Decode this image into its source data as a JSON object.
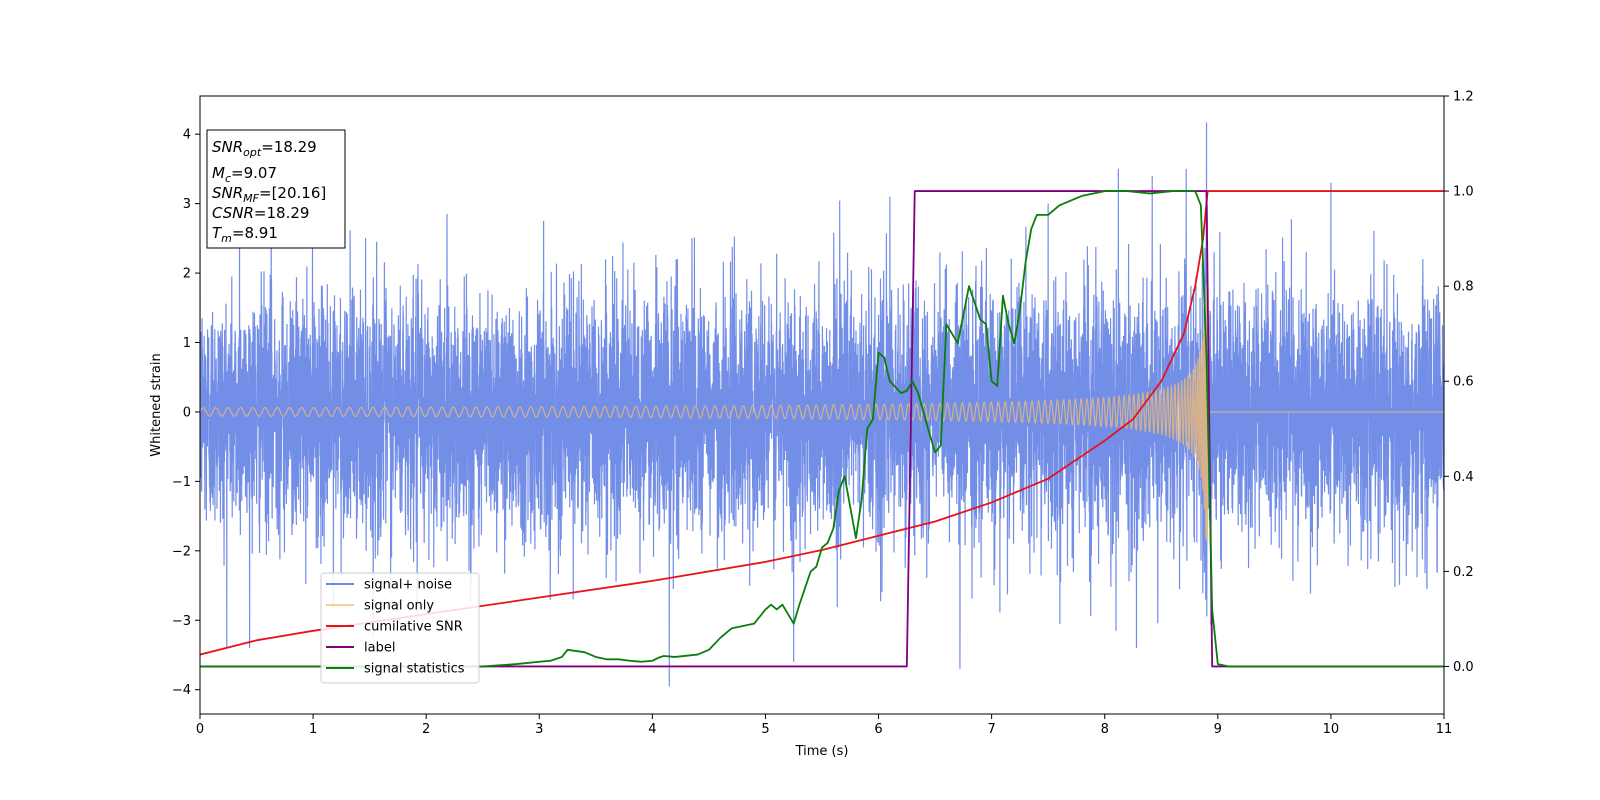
{
  "chart_data": {
    "type": "line",
    "xlabel": "Time (s)",
    "ylabel": "Whitened strain",
    "xlim": [
      0,
      11
    ],
    "ylim_left": [
      -4.35,
      4.55
    ],
    "ylim_right": [
      -0.1,
      1.2
    ],
    "x_ticks": [
      "0",
      "1",
      "2",
      "3",
      "4",
      "5",
      "6",
      "7",
      "8",
      "9",
      "10",
      "11"
    ],
    "y_ticks_left": [
      "−4",
      "−3",
      "−2",
      "−1",
      "0",
      "1",
      "2",
      "3",
      "4"
    ],
    "y_ticks_right": [
      "0.0",
      "0.2",
      "0.4",
      "0.6",
      "0.8",
      "1.0",
      "1.2"
    ],
    "info_box": {
      "snr_opt": {
        "var": "SNR",
        "sub": "opt",
        "value": "=18.29"
      },
      "mc": {
        "var": "M",
        "sub": "c",
        "value": "=9.07"
      },
      "snr_mf": {
        "var": "SNR",
        "sub": "MF",
        "value": "=[20.16]"
      },
      "csnr": {
        "var": "CSNR",
        "sub": "",
        "value": "=18.29"
      },
      "tm": {
        "var": "T",
        "sub": "m",
        "value": "=8.91"
      }
    },
    "legend": {
      "location": "lower-left",
      "entries": [
        "signal+ noise",
        "signal only",
        "cumilative SNR",
        "label",
        "signal statistics"
      ]
    },
    "series": [
      {
        "name": "signal+ noise",
        "axis": "left",
        "color": "#6b88e6",
        "noise": {
          "sigma": 0.85,
          "t_start": 0,
          "t_end": 11
        },
        "peaks": [
          [
            0.35,
            2.6
          ],
          [
            0.63,
            3.1
          ],
          [
            1.18,
            -2.8
          ],
          [
            1.92,
            -2.9
          ],
          [
            3.3,
            -2.7
          ],
          [
            4.15,
            -3.95
          ],
          [
            4.35,
            2.5
          ],
          [
            5.25,
            -3.6
          ],
          [
            6.1,
            3.1
          ],
          [
            6.72,
            -3.7
          ],
          [
            8.12,
            3.5
          ],
          [
            8.28,
            -3.4
          ],
          [
            8.42,
            3.4
          ],
          [
            8.72,
            3.5
          ],
          [
            8.9,
            4.17
          ],
          [
            10.0,
            3.3
          ],
          [
            10.85,
            -2.55
          ],
          [
            7.5,
            3.0
          ]
        ]
      },
      {
        "name": "signal only",
        "axis": "left",
        "color": "#f5be6e",
        "chirp": {
          "t_start": 0,
          "t_c": 8.91,
          "a0": 0.06,
          "f0": 9,
          "amp_power": 0.55,
          "max_amp": 1.85
        }
      },
      {
        "name": "cumilative SNR",
        "axis": "right",
        "color": "#e8121a",
        "x": [
          0,
          0.5,
          1,
          2,
          3,
          4,
          5,
          5.5,
          6,
          6.5,
          7,
          7.5,
          8,
          8.25,
          8.5,
          8.7,
          8.8,
          8.87,
          8.91,
          9,
          11
        ],
        "y": [
          0.025,
          0.055,
          0.075,
          0.11,
          0.145,
          0.18,
          0.22,
          0.245,
          0.275,
          0.305,
          0.345,
          0.395,
          0.475,
          0.52,
          0.6,
          0.7,
          0.8,
          0.9,
          1.0,
          1.0,
          1.0
        ]
      },
      {
        "name": "label",
        "axis": "right",
        "color": "#800080",
        "x": [
          0,
          6.25,
          6.32,
          8.9,
          8.95,
          11
        ],
        "y": [
          0,
          0,
          1,
          1,
          0,
          0
        ]
      },
      {
        "name": "signal statistics",
        "axis": "right",
        "color": "#0b7d0b",
        "x": [
          0,
          1,
          2,
          2.5,
          2.8,
          3.0,
          3.1,
          3.2,
          3.25,
          3.4,
          3.5,
          3.6,
          3.7,
          3.8,
          3.9,
          4.0,
          4.05,
          4.1,
          4.2,
          4.4,
          4.5,
          4.6,
          4.7,
          4.8,
          4.9,
          5.0,
          5.05,
          5.1,
          5.15,
          5.25,
          5.3,
          5.4,
          5.45,
          5.5,
          5.55,
          5.6,
          5.65,
          5.7,
          5.8,
          5.85,
          5.9,
          5.95,
          6.0,
          6.05,
          6.1,
          6.2,
          6.25,
          6.3,
          6.35,
          6.45,
          6.5,
          6.55,
          6.6,
          6.7,
          6.8,
          6.9,
          6.95,
          7.0,
          7.05,
          7.1,
          7.15,
          7.2,
          7.25,
          7.3,
          7.35,
          7.4,
          7.5,
          7.6,
          7.7,
          7.8,
          8.0,
          8.2,
          8.4,
          8.6,
          8.8,
          8.85,
          8.9,
          8.95,
          9.0,
          9.1,
          11
        ],
        "y": [
          0,
          0,
          0,
          0,
          0.005,
          0.01,
          0.012,
          0.02,
          0.035,
          0.03,
          0.02,
          0.015,
          0.015,
          0.012,
          0.01,
          0.012,
          0.018,
          0.022,
          0.02,
          0.025,
          0.035,
          0.06,
          0.08,
          0.085,
          0.09,
          0.12,
          0.13,
          0.12,
          0.13,
          0.09,
          0.13,
          0.2,
          0.21,
          0.25,
          0.26,
          0.29,
          0.37,
          0.4,
          0.27,
          0.35,
          0.5,
          0.52,
          0.66,
          0.65,
          0.6,
          0.575,
          0.58,
          0.6,
          0.575,
          0.49,
          0.45,
          0.465,
          0.72,
          0.68,
          0.8,
          0.73,
          0.72,
          0.6,
          0.59,
          0.78,
          0.72,
          0.68,
          0.75,
          0.85,
          0.92,
          0.95,
          0.95,
          0.97,
          0.98,
          0.99,
          1.0,
          1.0,
          0.995,
          1.0,
          1.0,
          0.97,
          0.65,
          0.12,
          0.005,
          0,
          0
        ]
      }
    ]
  }
}
